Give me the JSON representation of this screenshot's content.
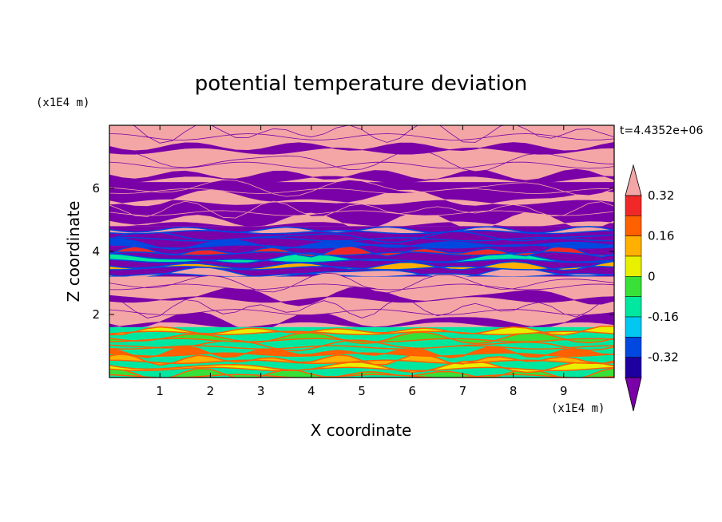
{
  "chart_data": {
    "type": "heatmap",
    "title": "potential temperature deviation",
    "xlabel": "X coordinate",
    "ylabel": "Z coordinate",
    "x_unit": "(x1E4 m)",
    "y_unit": "(x1E4 m)",
    "time_label": "t=4.4352e+06",
    "xlim": [
      0,
      10
    ],
    "ylim": [
      0,
      8
    ],
    "x_ticks": [
      "1",
      "2",
      "3",
      "4",
      "5",
      "6",
      "7",
      "8",
      "9"
    ],
    "y_ticks": [
      "2",
      "4",
      "6"
    ],
    "colorbar": {
      "levels": [
        -0.4,
        -0.32,
        -0.24,
        -0.16,
        -0.08,
        0,
        0.08,
        0.16,
        0.24,
        0.32,
        0.4
      ],
      "colors": [
        "#7a00a8",
        "#1e00a0",
        "#0048e0",
        "#00c8f0",
        "#00e8a0",
        "#38e038",
        "#e8f000",
        "#ffb000",
        "#ff6000",
        "#f02828",
        "#f4a6a6"
      ],
      "tick_labels": [
        "0.32",
        "0.16",
        "0",
        "-0.16",
        "-0.32"
      ],
      "tick_values": [
        0.32,
        0.16,
        0,
        -0.16,
        -0.32
      ],
      "extend": "both"
    },
    "field_description_bands": [
      {
        "z_range": [
          6.2,
          8.0
        ],
        "pattern": "alternating",
        "values": [
          0.4,
          -0.4
        ]
      },
      {
        "z_range": [
          4.8,
          6.2
        ],
        "pattern": "alternating",
        "values": [
          -0.4,
          0.4
        ]
      },
      {
        "z_range": [
          3.2,
          4.8
        ],
        "pattern": "mixed",
        "values": [
          -0.4,
          0.4,
          0.1,
          -0.1,
          0.25,
          -0.3
        ]
      },
      {
        "z_range": [
          1.6,
          3.2
        ],
        "pattern": "alternating",
        "values": [
          0.4,
          -0.4
        ]
      },
      {
        "z_range": [
          0.0,
          1.6
        ],
        "pattern": "mixed",
        "values": [
          -0.12,
          -0.05,
          0.05,
          0.12,
          0.2
        ]
      }
    ]
  }
}
